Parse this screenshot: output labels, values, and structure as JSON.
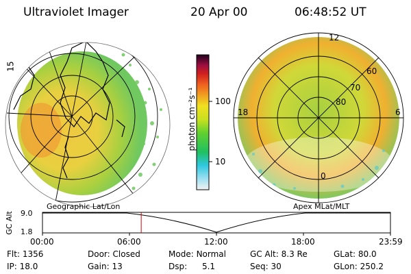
{
  "header": {
    "title": "Ultraviolet Imager",
    "date": "20 Apr 00",
    "time": "06:48:52 UT"
  },
  "colorbar": {
    "unit_label": "photon cm⁻²s⁻¹",
    "ticks": [
      "100",
      "10"
    ]
  },
  "left_map": {
    "caption": "Geographic Lat/Lon",
    "lon_labels": [
      "15"
    ]
  },
  "right_map": {
    "caption": "Apex MLat/MLT",
    "mlt_labels": [
      "12",
      "18",
      "6",
      "0"
    ],
    "mlat_labels": [
      "60",
      "70",
      "80"
    ]
  },
  "altitude_plot": {
    "ylabel": "GC Alt",
    "yticks": [
      "9.0",
      "1.8"
    ],
    "xticks": [
      "00:00",
      "06:00",
      "12:00",
      "18:00",
      "23:59"
    ],
    "current_time_hours": 6.81,
    "marker_color": "#cc0000"
  },
  "status": {
    "rows": [
      [
        {
          "label": "Flt:",
          "value": "1356"
        },
        {
          "label": "Door:",
          "value": "Closed"
        },
        {
          "label": "Mode:",
          "value": "Normal"
        },
        {
          "label": "GC Alt:",
          "value": "8.3 Re"
        },
        {
          "label": "GLat:",
          "value": "80.0"
        }
      ],
      [
        {
          "label": "IP:",
          "value": "18.0"
        },
        {
          "label": "Gain:",
          "value": "13"
        },
        {
          "label": "Dsp:",
          "value": "5.1"
        },
        {
          "label": "Seq:",
          "value": "30"
        },
        {
          "label": "GLon:",
          "value": "250.2"
        }
      ]
    ]
  }
}
